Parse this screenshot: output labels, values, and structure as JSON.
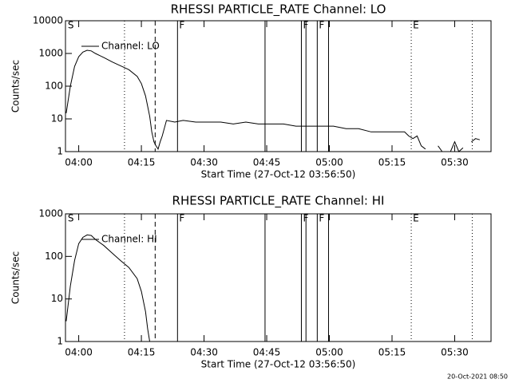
{
  "chart_data": [
    {
      "type": "line",
      "title": "RHESSI PARTICLE_RATE Channel: LO",
      "xlabel": "Start Time (27-Oct-12 03:56:50)",
      "ylabel": "Counts/sec",
      "log_y": true,
      "xlim": [
        236.83,
        338.7
      ],
      "ylim": [
        1,
        10000
      ],
      "yticks": [
        1,
        10,
        100,
        1000,
        10000
      ],
      "xticks": [
        {
          "value": 240,
          "label": "04:00"
        },
        {
          "value": 255,
          "label": "04:15"
        },
        {
          "value": 270,
          "label": "04:30"
        },
        {
          "value": 285,
          "label": "04:45"
        },
        {
          "value": 300,
          "label": "05:00"
        },
        {
          "value": 315,
          "label": "05:15"
        },
        {
          "value": 330,
          "label": "05:30"
        }
      ],
      "x": [
        237,
        238,
        239,
        240,
        241,
        242,
        243,
        244,
        246,
        248,
        250,
        252,
        254,
        255,
        256,
        257,
        257.5,
        258,
        258.5,
        259,
        259.5,
        260,
        261,
        263,
        265,
        268,
        271,
        274,
        277,
        280,
        283,
        286,
        289,
        292,
        295,
        298,
        301,
        304,
        307,
        310,
        313,
        316,
        318,
        319,
        320,
        321,
        322,
        323,
        324,
        325,
        326,
        327,
        328,
        329,
        330,
        331,
        332,
        333,
        334,
        335,
        336
      ],
      "series": [
        {
          "name": "Channel: LO",
          "color": "#000000",
          "values": [
            15,
            100,
            400,
            800,
            1100,
            1250,
            1200,
            1000,
            750,
            550,
            420,
            320,
            200,
            120,
            50,
            12,
            4,
            2,
            1.5,
            1.2,
            2,
            3,
            9,
            8,
            9,
            8,
            8,
            8,
            7,
            8,
            7,
            7,
            7,
            6,
            6,
            6,
            6,
            5,
            5,
            4,
            4,
            4,
            4,
            3,
            2.5,
            3,
            1.5,
            1.2,
            null,
            null,
            1.5,
            1,
            null,
            1,
            2,
            1,
            1.3,
            null,
            2,
            2.5,
            2.3
          ]
        }
      ],
      "events": [
        {
          "x": 237,
          "label": "S"
        },
        {
          "x": 250.96,
          "style": "dotted"
        },
        {
          "x": 258.3,
          "style": "dashed"
        },
        {
          "x": 263.65,
          "style": "solid",
          "label": "F"
        },
        {
          "x": 284.6,
          "style": "solid"
        },
        {
          "x": 293.3,
          "style": "solid",
          "label": "F"
        },
        {
          "x": 294.4,
          "style": "solid"
        },
        {
          "x": 297.1,
          "style": "solid",
          "label": "F"
        },
        {
          "x": 299.8,
          "style": "solid"
        },
        {
          "x": 319.6,
          "style": "dotted",
          "label": "E"
        },
        {
          "x": 334.2,
          "style": "dotted"
        }
      ]
    },
    {
      "type": "line",
      "title": "RHESSI PARTICLE_RATE Channel: HI",
      "xlabel": "Start Time (27-Oct-12 03:56:50)",
      "ylabel": "Counts/sec",
      "log_y": true,
      "xlim": [
        236.83,
        338.7
      ],
      "ylim": [
        1,
        1000
      ],
      "yticks": [
        1,
        10,
        100,
        1000
      ],
      "xticks": [
        {
          "value": 240,
          "label": "04:00"
        },
        {
          "value": 255,
          "label": "04:15"
        },
        {
          "value": 270,
          "label": "04:30"
        },
        {
          "value": 285,
          "label": "04:45"
        },
        {
          "value": 300,
          "label": "05:00"
        },
        {
          "value": 315,
          "label": "05:15"
        },
        {
          "value": 330,
          "label": "05:30"
        }
      ],
      "x": [
        237,
        238,
        239,
        240,
        241,
        242,
        243,
        244,
        246,
        248,
        250,
        252,
        254,
        255,
        256,
        256.5,
        257
      ],
      "series": [
        {
          "name": "Channel: HI",
          "color": "#000000",
          "values": [
            3,
            20,
            80,
            200,
            280,
            320,
            310,
            250,
            180,
            120,
            80,
            55,
            30,
            15,
            5,
            2,
            1
          ]
        }
      ],
      "events": [
        {
          "x": 237,
          "label": "S"
        },
        {
          "x": 250.96,
          "style": "dotted"
        },
        {
          "x": 258.3,
          "style": "dashed"
        },
        {
          "x": 263.65,
          "style": "solid",
          "label": "F"
        },
        {
          "x": 284.6,
          "style": "solid"
        },
        {
          "x": 293.3,
          "style": "solid",
          "label": "F"
        },
        {
          "x": 294.4,
          "style": "solid"
        },
        {
          "x": 297.1,
          "style": "solid",
          "label": "F"
        },
        {
          "x": 299.8,
          "style": "solid"
        },
        {
          "x": 319.6,
          "style": "dotted",
          "label": "E"
        },
        {
          "x": 334.2,
          "style": "dotted"
        }
      ]
    }
  ],
  "footer": "20-Oct-2021 08:50"
}
